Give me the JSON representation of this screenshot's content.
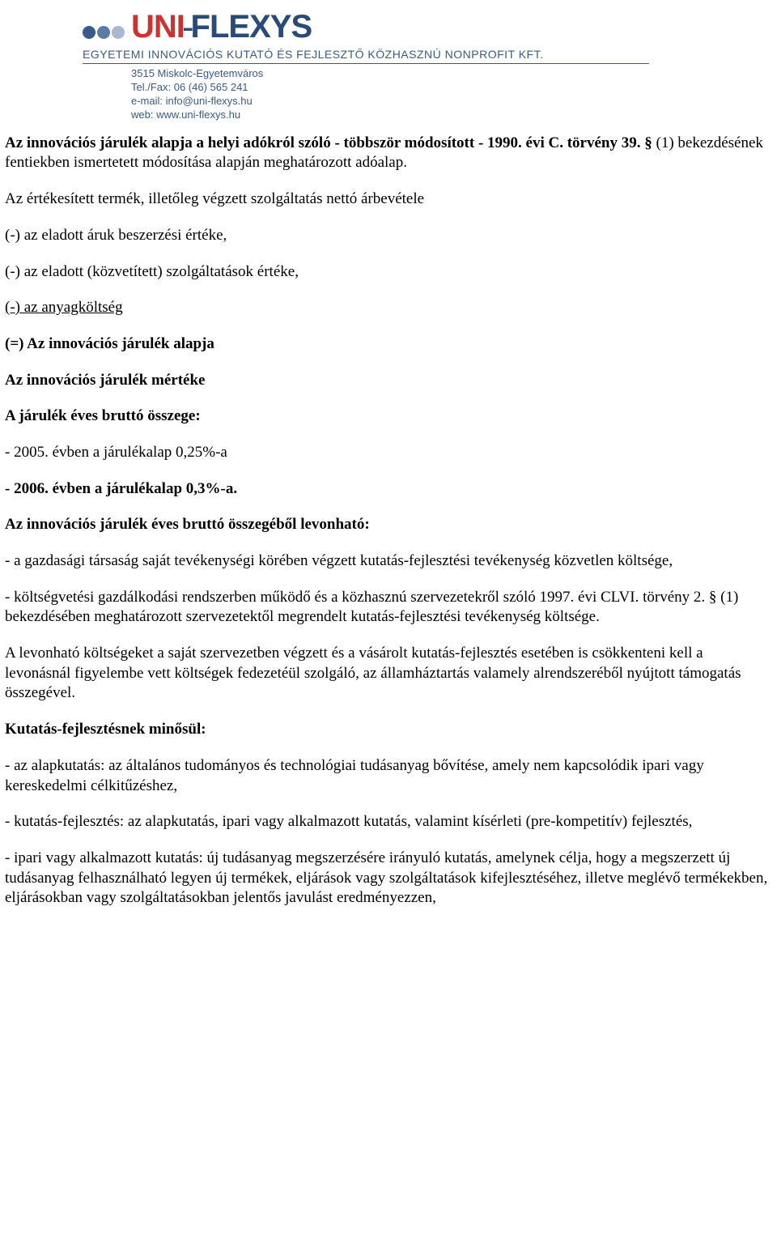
{
  "header": {
    "logo_uni": "UNI",
    "logo_flexys": "FLEXYS",
    "tagline": "EGYETEMI INNOVÁCIÓS KUTATÓ ÉS FEJLESZTŐ KÖZHASZNÚ NONPROFIT KFT.",
    "addr": "3515 Miskolc-Egyetemváros",
    "tel": "Tel./Fax: 06 (46) 565 241",
    "email": "e-mail: info@uni-flexys.hu",
    "web": "web: www.uni-flexys.hu",
    "colors": {
      "dot1": "#3a5a8a",
      "dot2": "#5a7aa8",
      "dot3": "#a8b8d0",
      "logo_uni": "#d03030",
      "logo_flexys": "#2a4a7a",
      "tagline": "#3a5a8a"
    }
  },
  "body": {
    "p1a": "Az innovációs járulék alapja a helyi adókról szóló - többször módosított - 1990. évi C. törvény 39. § ",
    "p1b": "(1) bekezdésének fentiekben ismertetett módosítása alapján meghatározott adóalap.",
    "p2": "Az értékesített termék, illetőleg végzett szolgáltatás nettó árbevétele",
    "p3": "(-) az eladott áruk beszerzési értéke,",
    "p4": "(-) az eladott (közvetített) szolgáltatások értéke,",
    "p5": "(-) az anyagköltség",
    "p6": "(=) Az innovációs járulék alapja",
    "p7": "Az innovációs járulék mértéke",
    "p8": "A járulék éves bruttó összege:",
    "p9": "- 2005. évben a járulékalap 0,25%-a",
    "p10": "- 2006. évben a járulékalap 0,3%-a.",
    "p11": "Az innovációs járulék éves bruttó összegéből levonható:",
    "p12": "- a gazdasági társaság saját tevékenységi körében végzett kutatás-fejlesztési tevékenység közvetlen költsége,",
    "p13": "- költségvetési gazdálkodási rendszerben működő és a közhasznú szervezetekről szóló 1997. évi CLVI. törvény 2. § (1) bekezdésében meghatározott szervezetektől megrendelt kutatás-fejlesztési tevékenység költsége.",
    "p14": "A levonható költségeket a saját szervezetben végzett és a vásárolt kutatás-fejlesztés esetében is csökkenteni kell a levonásnál figyelembe vett költségek fedezetéül szolgáló, az államháztartás valamely alrendszeréből nyújtott támogatás összegével.",
    "p15": "Kutatás-fejlesztésnek minősül:",
    "p16": "- az alapkutatás: az általános tudományos és technológiai tudásanyag bővítése, amely nem kapcsolódik ipari vagy kereskedelmi célkitűzéshez,",
    "p17": "- kutatás-fejlesztés: az alapkutatás, ipari vagy alkalmazott kutatás, valamint kísérleti (pre-kompetitív) fejlesztés,",
    "p18": "- ipari vagy alkalmazott kutatás: új tudásanyag megszerzésére irányuló kutatás, amelynek célja, hogy a megszerzett új tudásanyag felhasználható legyen új termékek, eljárások vagy szolgáltatások kifejlesztéséhez, illetve meglévő termékekben, eljárásokban vagy szolgáltatásokban jelentős javulást eredményezzen,"
  }
}
